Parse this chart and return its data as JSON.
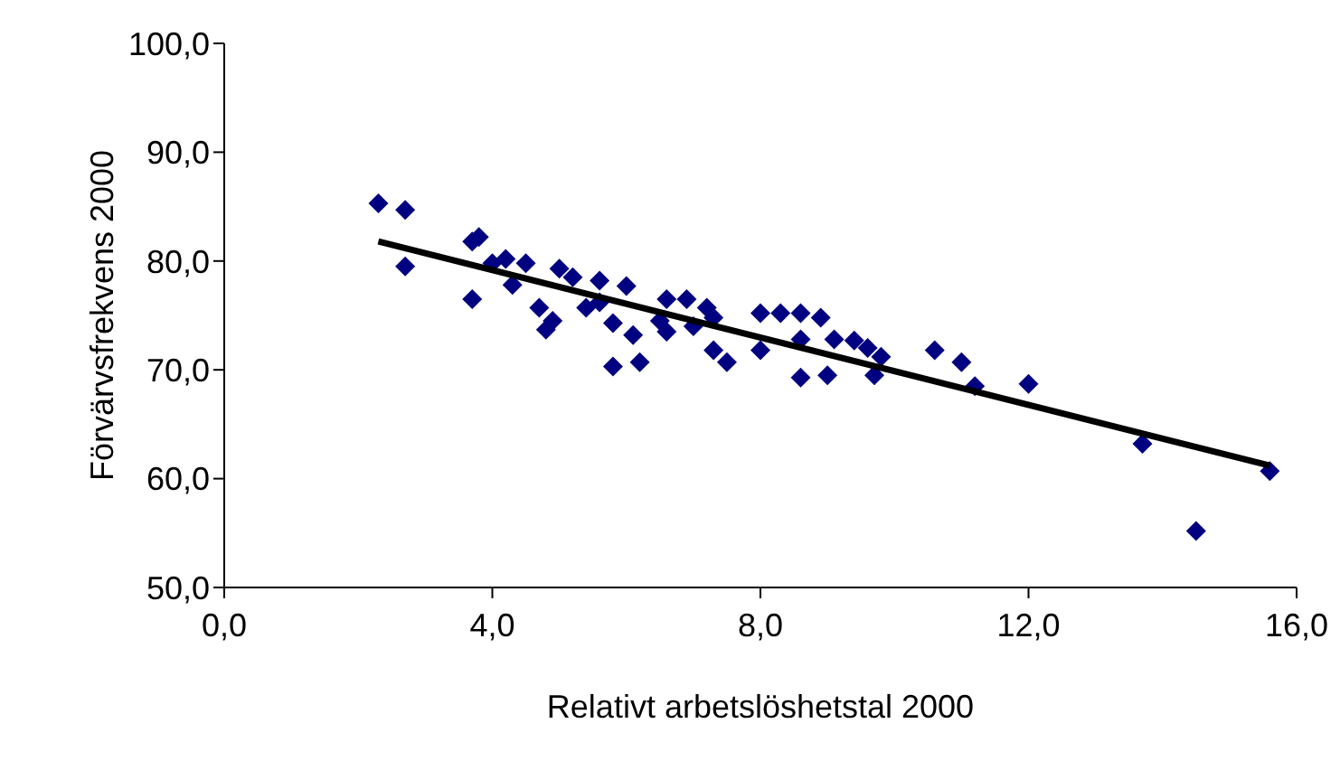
{
  "chart_data": {
    "type": "scatter",
    "xlabel": "Relativt arbetslöshetstal 2000",
    "ylabel": "Förvärvsfrekvens 2000",
    "grid": false,
    "legend": false,
    "xlim": [
      0,
      16
    ],
    "xticks": [
      {
        "value": 0,
        "label": "0,0"
      },
      {
        "value": 4,
        "label": "4,0"
      },
      {
        "value": 8,
        "label": "8,0"
      },
      {
        "value": 12,
        "label": "12,0"
      },
      {
        "value": 16,
        "label": "16,0"
      }
    ],
    "ylim": [
      50,
      100
    ],
    "yticks": [
      {
        "value": 50,
        "label": "50,0"
      },
      {
        "value": 60,
        "label": "60,0"
      },
      {
        "value": 70,
        "label": "70,0"
      },
      {
        "value": 80,
        "label": "80,0"
      },
      {
        "value": 90,
        "label": "90,0"
      },
      {
        "value": 100,
        "label": "100,0"
      }
    ],
    "series": [
      {
        "marker": "diamond",
        "color": "#000080",
        "x": [
          2.3,
          2.7,
          2.7,
          3.7,
          3.8,
          3.7,
          4.0,
          4.2,
          4.5,
          4.3,
          4.7,
          4.8,
          4.9,
          5.0,
          5.2,
          5.6,
          5.6,
          6.0,
          5.4,
          5.8,
          6.1,
          6.2,
          5.8,
          6.6,
          6.5,
          6.9,
          7.2,
          7.3,
          6.6,
          7.0,
          7.3,
          7.5,
          8.0,
          8.3,
          8.6,
          8.9,
          8.0,
          8.6,
          8.6,
          9.0,
          9.1,
          9.4,
          9.6,
          9.8,
          9.7,
          10.6,
          11.0,
          11.2,
          12.0,
          13.7,
          14.5,
          15.6
        ],
        "values": [
          85.3,
          84.7,
          79.5,
          81.8,
          82.2,
          76.5,
          79.8,
          80.2,
          79.8,
          77.8,
          75.7,
          73.7,
          74.5,
          79.3,
          78.5,
          78.2,
          76.2,
          77.7,
          75.7,
          74.3,
          73.2,
          70.7,
          70.3,
          76.5,
          74.5,
          76.5,
          75.7,
          74.8,
          73.5,
          74.0,
          71.8,
          70.7,
          75.2,
          75.2,
          75.2,
          74.8,
          71.8,
          72.8,
          69.3,
          69.5,
          72.8,
          72.7,
          72.0,
          71.2,
          69.5,
          71.8,
          70.7,
          68.5,
          68.7,
          63.2,
          55.2,
          60.7
        ]
      },
      {
        "type": "line",
        "marker": "none",
        "color": "#000000",
        "x": [
          2.3,
          15.6
        ],
        "values": [
          81.8,
          61.2
        ]
      }
    ]
  }
}
